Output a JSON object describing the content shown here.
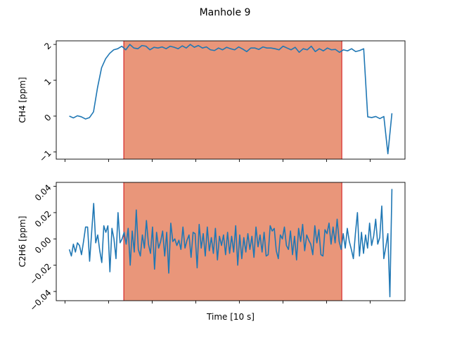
{
  "title": "Manhole 9",
  "colors": {
    "line": "#1f77b4",
    "span_fill": "#e9967a",
    "span_edge": "#d62728"
  },
  "chart_data": [
    {
      "type": "line",
      "ylabel": "CH4 [ppm]",
      "xlabel": "",
      "xlim": [
        -2,
        78
      ],
      "ylim": [
        -1.2,
        2.1
      ],
      "yticks": [
        -1,
        0,
        1,
        2
      ],
      "ytick_labels": [
        "−1",
        "0",
        "1",
        "2"
      ],
      "xticks": [
        0,
        10,
        20,
        30,
        40,
        50,
        60,
        70
      ],
      "xtick_labels": [
        "",
        "",
        "",
        "",
        "",
        "",
        "",
        ""
      ],
      "grid": false,
      "span": [
        13.5,
        63.5
      ],
      "x_start": 1,
      "values": [
        0.0,
        -0.05,
        0.01,
        -0.02,
        -0.08,
        -0.04,
        0.12,
        0.8,
        1.35,
        1.6,
        1.75,
        1.85,
        1.88,
        1.95,
        1.85,
        2.0,
        1.9,
        1.88,
        1.97,
        1.95,
        1.85,
        1.92,
        1.9,
        1.93,
        1.88,
        1.95,
        1.92,
        1.88,
        1.96,
        1.9,
        2.0,
        1.92,
        1.97,
        1.9,
        1.93,
        1.85,
        1.83,
        1.9,
        1.85,
        1.92,
        1.88,
        1.85,
        1.93,
        1.87,
        1.8,
        1.9,
        1.9,
        1.86,
        1.93,
        1.9,
        1.9,
        1.88,
        1.85,
        1.95,
        1.9,
        1.85,
        1.92,
        1.78,
        1.88,
        1.85,
        1.95,
        1.8,
        1.88,
        1.82,
        1.9,
        1.85,
        1.86,
        1.78,
        1.85,
        1.82,
        1.88,
        1.8,
        1.83,
        1.88,
        -0.02,
        -0.04,
        -0.01,
        -0.07,
        -0.01,
        -1.05,
        0.08
      ]
    },
    {
      "type": "line",
      "ylabel": "C2H6 [ppm]",
      "xlabel": "Time [10 s]",
      "xlim": [
        -2,
        78
      ],
      "ylim": [
        -0.047,
        0.043
      ],
      "yticks": [
        -0.04,
        -0.02,
        0.0,
        0.02,
        0.04
      ],
      "ytick_labels": [
        "−0.04",
        "−0.02",
        "0.00",
        "0.02",
        "0.04"
      ],
      "xticks": [
        0,
        10,
        20,
        30,
        40,
        50,
        60,
        70
      ],
      "xtick_labels": [
        "",
        "",
        "",
        "",
        "",
        "",
        "",
        ""
      ],
      "grid": false,
      "span": [
        13.5,
        63.5
      ],
      "x_start": 1,
      "values": [
        -0.008,
        -0.013,
        -0.004,
        -0.01,
        -0.003,
        -0.005,
        -0.012,
        -0.002,
        0.009,
        0.009,
        -0.017,
        0.005,
        0.027,
        -0.003,
        0.003,
        -0.009,
        -0.018,
        0.01,
        0.005,
        0.01,
        -0.025,
        0.008,
        0.0,
        -0.015,
        0.02,
        -0.003,
        0.0,
        0.005,
        -0.004,
        0.008,
        -0.02,
        0.006,
        -0.01,
        0.022,
        -0.008,
        -0.013,
        0.003,
        -0.007,
        0.014,
        -0.004,
        -0.011,
        0.009,
        -0.023,
        0.005,
        -0.007,
        -0.002,
        0.006,
        -0.013,
        0.005,
        -0.026,
        0.012,
        -0.002,
        0.0,
        -0.005,
        -0.001,
        -0.008,
        0.009,
        -0.007,
        -0.001,
        0.003,
        -0.014,
        0.005,
        0.004,
        -0.022,
        0.011,
        -0.007,
        0.004,
        -0.013,
        0.009,
        -0.009,
        0.001,
        -0.011,
        0.008,
        -0.016,
        0.002,
        -0.005,
        0.003,
        -0.012,
        0.005,
        -0.011,
        0.002,
        -0.01,
        0.01,
        -0.02,
        0.003,
        -0.015,
        0.001,
        -0.01,
        0.004,
        -0.008,
        0.002,
        -0.014,
        0.009,
        -0.006,
        0.003,
        -0.01,
        0.005,
        -0.013,
        -0.012,
        0.01,
        0.006,
        0.008,
        -0.009,
        -0.015,
        0.003,
        0.0,
        0.009,
        -0.005,
        -0.008,
        0.006,
        -0.012,
        0.002,
        -0.016,
        0.008,
        -0.002,
        0.011,
        -0.009,
        0.003,
        -0.001,
        -0.004,
        -0.012,
        0.01,
        -0.003,
        0.007,
        -0.012,
        -0.013,
        0.007,
        0.004,
        0.012,
        -0.004,
        0.009,
        -0.003,
        0.015,
        -0.002,
        -0.008,
        0.004,
        -0.007,
        0.008,
        -0.002,
        -0.008,
        -0.015,
        0.004,
        0.02,
        -0.013,
        0.005,
        -0.011,
        0.003,
        -0.007,
        0.012,
        -0.005,
        0.002,
        0.015,
        -0.004,
        0.001,
        0.025,
        -0.015,
        -0.006,
        0.004,
        -0.044,
        0.038
      ]
    }
  ]
}
